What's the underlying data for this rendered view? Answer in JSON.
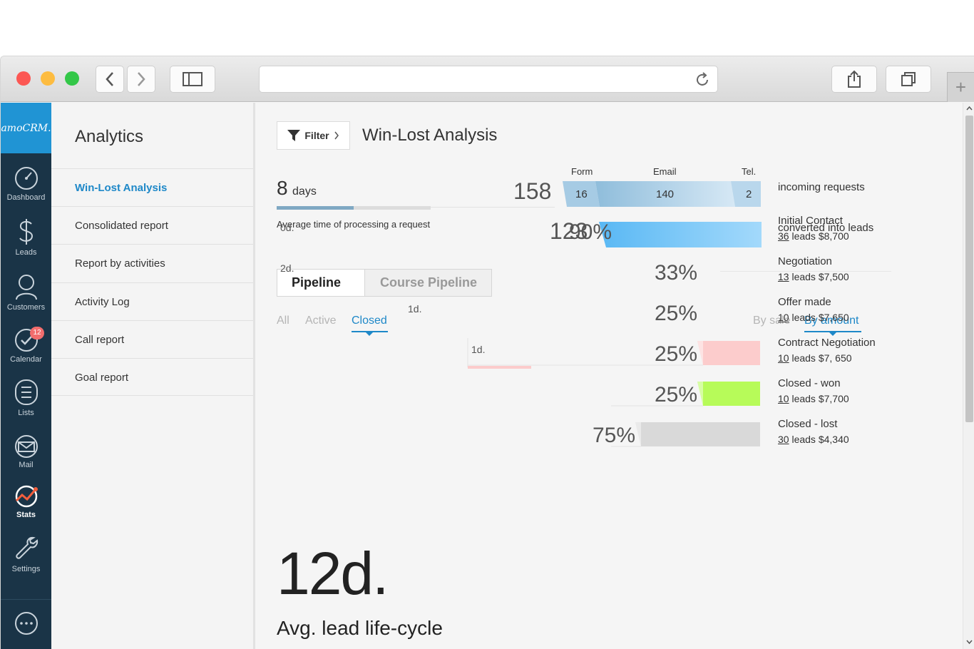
{
  "sidebar": {
    "logo": "amoCRM.",
    "items": [
      {
        "label": "Dashboard",
        "icon": "dashboard-icon"
      },
      {
        "label": "Leads",
        "icon": "leads-icon"
      },
      {
        "label": "Customers",
        "icon": "customers-icon"
      },
      {
        "label": "Calendar",
        "icon": "calendar-icon",
        "badge": "12"
      },
      {
        "label": "Lists",
        "icon": "lists-icon"
      },
      {
        "label": "Mail",
        "icon": "mail-icon"
      },
      {
        "label": "Stats",
        "icon": "stats-icon",
        "active": true
      },
      {
        "label": "Settings",
        "icon": "settings-icon"
      }
    ],
    "chat_icon": "chat-icon"
  },
  "subnav": {
    "title": "Analytics",
    "items": [
      {
        "label": "Win-Lost Analysis",
        "active": true
      },
      {
        "label": "Consolidated report"
      },
      {
        "label": "Report by activities"
      },
      {
        "label": "Activity Log"
      },
      {
        "label": "Call report"
      },
      {
        "label": "Goal report"
      }
    ]
  },
  "header": {
    "filter_label": "Filter",
    "title": "Win-Lost Analysis"
  },
  "summary": {
    "avg_days_value": "8",
    "avg_days_unit": "days",
    "avg_days_caption": "Average time of processing a request",
    "avg_days_progress": 0.5,
    "incoming_total": "158",
    "incoming_label": "incoming requests",
    "channels": [
      {
        "name": "Form",
        "value": "16"
      },
      {
        "name": "Email",
        "value": "140"
      },
      {
        "name": "Tel.",
        "value": "2"
      }
    ],
    "converted_total": "123",
    "converted_label": "converted into leads"
  },
  "pipeline_tabs": [
    {
      "label": "Pipeline",
      "active": true
    },
    {
      "label": "Course Pipeline",
      "active": false
    }
  ],
  "status_filters": [
    {
      "label": "All",
      "active": false
    },
    {
      "label": "Active",
      "active": false
    },
    {
      "label": "Closed",
      "active": true
    }
  ],
  "sort_filters": [
    {
      "label": "By sale",
      "active": false
    },
    {
      "label": "By amount",
      "active": true
    }
  ],
  "lifecycle": {
    "value": "12d.",
    "label": "Avg. lead life-cycle"
  },
  "stages": [
    {
      "name": "Initial Contact",
      "percent": "90%",
      "pct_value": 90,
      "leads": "36",
      "leads_text": " leads $8,700",
      "days": "0d.",
      "color": "#7ec8f5"
    },
    {
      "name": "Negotiation",
      "percent": "33%",
      "pct_value": 33,
      "leads": "13",
      "leads_text": " leads $7,500",
      "days": "2d.",
      "color": "#fdc85e"
    },
    {
      "name": "Offer made",
      "percent": "25%",
      "pct_value": 25,
      "leads": "10",
      "leads_text": " leads $7,650",
      "days": "1d.",
      "color": "#fdfb9a"
    },
    {
      "name": "Contract Negotiation",
      "percent": "25%",
      "pct_value": 25,
      "leads": "10",
      "leads_text": " leads $7, 650",
      "days": "1d.",
      "color": "#fccccc"
    },
    {
      "name": "Closed - won",
      "percent": "25%",
      "pct_value": 25,
      "leads": "10",
      "leads_text": " leads $7,700",
      "color": "#b7fb59"
    },
    {
      "name": "Closed - lost",
      "percent": "75%",
      "pct_value": 75,
      "leads": "30",
      "leads_text": " leads $4,340",
      "color": "#d9d9d9"
    }
  ]
}
